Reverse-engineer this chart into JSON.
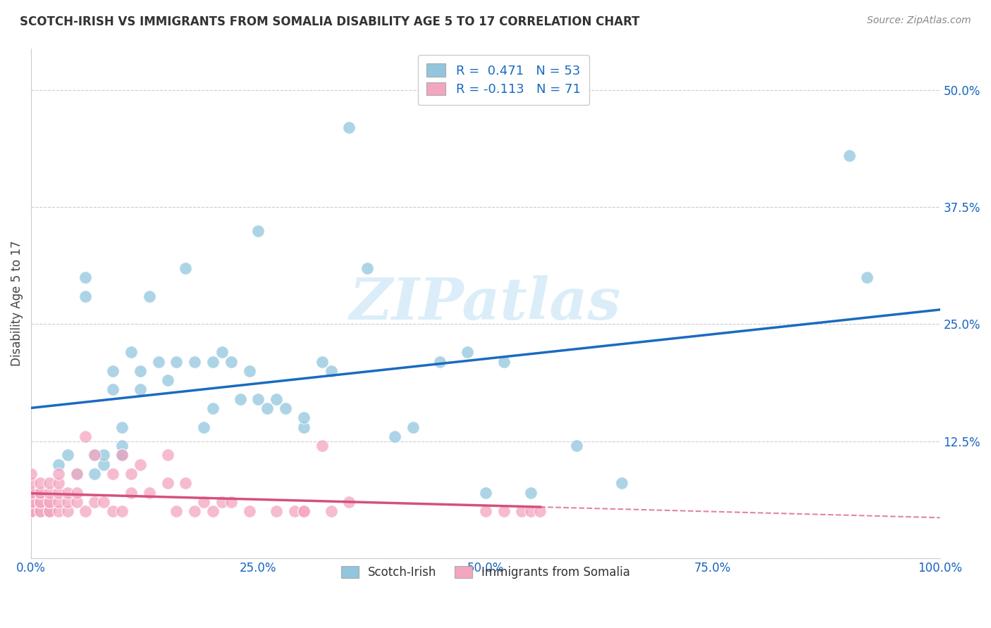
{
  "title": "SCOTCH-IRISH VS IMMIGRANTS FROM SOMALIA DISABILITY AGE 5 TO 17 CORRELATION CHART",
  "source": "Source: ZipAtlas.com",
  "ylabel": "Disability Age 5 to 17",
  "xlim": [
    0,
    1.0
  ],
  "ylim": [
    0,
    0.545
  ],
  "xticks": [
    0.0,
    0.25,
    0.5,
    0.75,
    1.0
  ],
  "xticklabels": [
    "0.0%",
    "25.0%",
    "50.0%",
    "75.0%",
    "100.0%"
  ],
  "yticks": [
    0.0,
    0.125,
    0.25,
    0.375,
    0.5
  ],
  "yticklabels": [
    "",
    "12.5%",
    "25.0%",
    "37.5%",
    "50.0%"
  ],
  "legend1_label": "R =  0.471   N = 53",
  "legend2_label": "R = -0.113   N = 71",
  "blue_color": "#92c5de",
  "pink_color": "#f4a5c0",
  "blue_line_color": "#1a6bbf",
  "pink_line_color": "#d45080",
  "blue_R": 0.471,
  "blue_N": 53,
  "pink_R": -0.113,
  "pink_N": 71,
  "blue_x": [
    0.03,
    0.04,
    0.05,
    0.06,
    0.06,
    0.07,
    0.07,
    0.08,
    0.08,
    0.09,
    0.09,
    0.1,
    0.1,
    0.1,
    0.1,
    0.11,
    0.12,
    0.12,
    0.13,
    0.14,
    0.15,
    0.16,
    0.17,
    0.18,
    0.19,
    0.2,
    0.2,
    0.21,
    0.22,
    0.23,
    0.24,
    0.26,
    0.27,
    0.28,
    0.3,
    0.3,
    0.32,
    0.33,
    0.35,
    0.37,
    0.4,
    0.42,
    0.45,
    0.48,
    0.5,
    0.52,
    0.55,
    0.6,
    0.65,
    0.9,
    0.92,
    0.25,
    0.25
  ],
  "blue_y": [
    0.1,
    0.11,
    0.09,
    0.3,
    0.28,
    0.09,
    0.11,
    0.1,
    0.11,
    0.18,
    0.2,
    0.11,
    0.12,
    0.14,
    0.11,
    0.22,
    0.18,
    0.2,
    0.28,
    0.21,
    0.19,
    0.21,
    0.31,
    0.21,
    0.14,
    0.16,
    0.21,
    0.22,
    0.21,
    0.17,
    0.2,
    0.16,
    0.17,
    0.16,
    0.14,
    0.15,
    0.21,
    0.2,
    0.46,
    0.31,
    0.13,
    0.14,
    0.21,
    0.22,
    0.07,
    0.21,
    0.07,
    0.12,
    0.08,
    0.43,
    0.3,
    0.35,
    0.17
  ],
  "pink_x": [
    0.0,
    0.0,
    0.0,
    0.0,
    0.0,
    0.0,
    0.0,
    0.0,
    0.0,
    0.0,
    0.0,
    0.01,
    0.01,
    0.01,
    0.01,
    0.01,
    0.01,
    0.01,
    0.02,
    0.02,
    0.02,
    0.02,
    0.02,
    0.02,
    0.02,
    0.03,
    0.03,
    0.03,
    0.03,
    0.03,
    0.04,
    0.04,
    0.04,
    0.05,
    0.05,
    0.05,
    0.06,
    0.06,
    0.07,
    0.07,
    0.08,
    0.09,
    0.09,
    0.1,
    0.1,
    0.11,
    0.11,
    0.12,
    0.13,
    0.15,
    0.15,
    0.16,
    0.17,
    0.18,
    0.19,
    0.2,
    0.21,
    0.22,
    0.24,
    0.27,
    0.29,
    0.3,
    0.3,
    0.32,
    0.33,
    0.35,
    0.5,
    0.52,
    0.54,
    0.55,
    0.56
  ],
  "pink_y": [
    0.05,
    0.05,
    0.05,
    0.06,
    0.06,
    0.06,
    0.07,
    0.07,
    0.07,
    0.08,
    0.09,
    0.05,
    0.05,
    0.06,
    0.06,
    0.07,
    0.07,
    0.08,
    0.05,
    0.05,
    0.05,
    0.06,
    0.06,
    0.07,
    0.08,
    0.05,
    0.06,
    0.07,
    0.08,
    0.09,
    0.05,
    0.06,
    0.07,
    0.06,
    0.07,
    0.09,
    0.05,
    0.13,
    0.06,
    0.11,
    0.06,
    0.05,
    0.09,
    0.05,
    0.11,
    0.07,
    0.09,
    0.1,
    0.07,
    0.08,
    0.11,
    0.05,
    0.08,
    0.05,
    0.06,
    0.05,
    0.06,
    0.06,
    0.05,
    0.05,
    0.05,
    0.05,
    0.05,
    0.12,
    0.05,
    0.06,
    0.05,
    0.05,
    0.05,
    0.05,
    0.05
  ],
  "watermark": "ZIPatlas",
  "background_color": "#ffffff",
  "grid_color": "#cccccc"
}
